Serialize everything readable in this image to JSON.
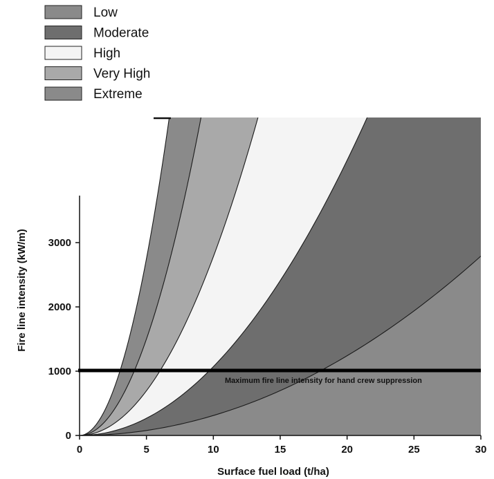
{
  "chart_data": {
    "type": "area",
    "xlabel": "Surface fuel load (t/ha)",
    "ylabel": "Fire line intensity (kW/m)",
    "xlim": [
      0,
      30
    ],
    "ylim": [
      0,
      3800
    ],
    "x_ticks": [
      0,
      5,
      10,
      15,
      20,
      25,
      30
    ],
    "x_tick_labels": [
      "0",
      "5",
      "10",
      "15",
      "20",
      "25",
      "30"
    ],
    "y_ticks": [
      0,
      1000,
      2000,
      3000
    ],
    "y_tick_labels": [
      "0",
      "1000",
      "2000",
      "3000"
    ],
    "grid": false,
    "legend_position": "top-left",
    "legend": [
      {
        "label": "Low",
        "color": "#8a8a8a"
      },
      {
        "label": "Moderate",
        "color": "#6e6e6e"
      },
      {
        "label": "High",
        "color": "#f4f4f4"
      },
      {
        "label": "Very High",
        "color": "#a9a9a9"
      },
      {
        "label": "Extreme",
        "color": "#8a8a8a"
      }
    ],
    "boundary_curves": [
      {
        "coefficient": 3.1,
        "values": [
          [
            0,
            0
          ],
          [
            5,
            77.5
          ],
          [
            10,
            310
          ],
          [
            15,
            697.5
          ],
          [
            20,
            1240
          ],
          [
            25,
            1937.5
          ],
          [
            30,
            2790
          ]
        ]
      },
      {
        "coefficient": 10.7,
        "values": [
          [
            0,
            0
          ],
          [
            5,
            267.5
          ],
          [
            10,
            1070
          ],
          [
            15,
            2407.5
          ],
          [
            20,
            4280
          ]
        ]
      },
      {
        "coefficient": 27.8,
        "values": [
          [
            0,
            0
          ],
          [
            2,
            111.2
          ],
          [
            4,
            444.8
          ],
          [
            6,
            1000.8
          ],
          [
            8,
            1779.2
          ],
          [
            10,
            2780
          ],
          [
            12,
            4003.2
          ]
        ]
      },
      {
        "coefficient": 60,
        "values": [
          [
            0,
            0
          ],
          [
            2,
            240
          ],
          [
            4,
            960
          ],
          [
            6,
            2160
          ],
          [
            8,
            3840
          ]
        ]
      },
      {
        "coefficient": 110,
        "values": [
          [
            0,
            0
          ],
          [
            2,
            440
          ],
          [
            4,
            1760
          ],
          [
            5,
            2750
          ],
          [
            6,
            3960
          ]
        ]
      }
    ],
    "bands_from_bottom": [
      {
        "between": [
          "x-axis",
          "curve 1"
        ],
        "color": "#8a8a8a"
      },
      {
        "between": [
          "curve 1",
          "curve 2"
        ],
        "color": "#6e6e6e"
      },
      {
        "between": [
          "curve 2",
          "curve 3"
        ],
        "color": "#f4f4f4"
      },
      {
        "between": [
          "curve 3",
          "curve 4"
        ],
        "color": "#a9a9a9"
      },
      {
        "between": [
          "curve 4",
          "curve 5"
        ],
        "color": "#8a8a8a"
      },
      {
        "between": [
          "curve 5",
          "y-axis"
        ],
        "color": "#ffffff"
      }
    ],
    "threshold_line": {
      "y": 1000,
      "label": "Maximum fire line intensity for hand crew suppression"
    }
  }
}
